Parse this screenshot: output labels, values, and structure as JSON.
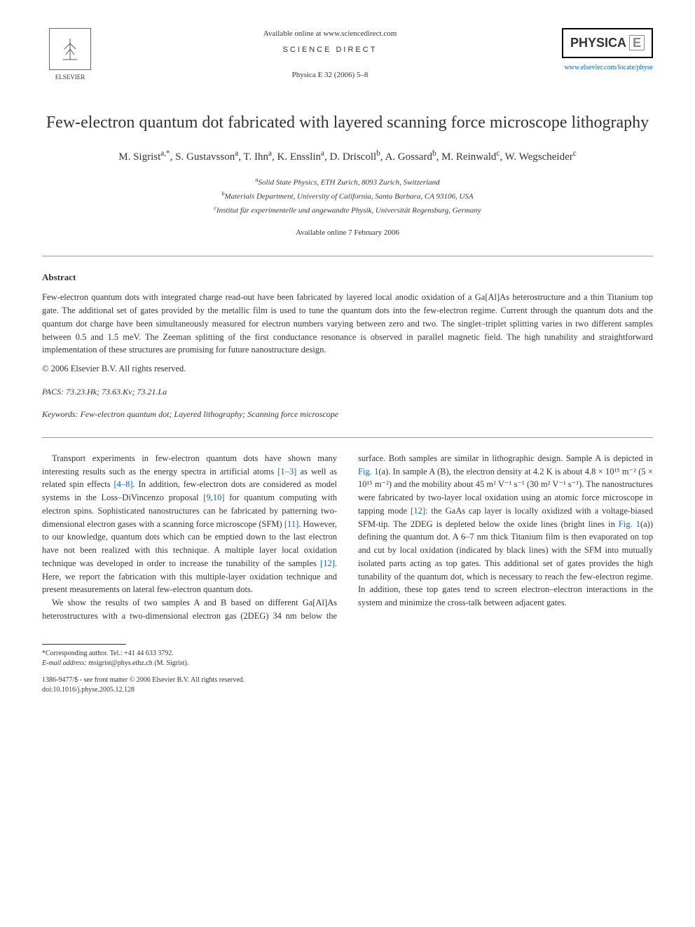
{
  "header": {
    "elsevier_label": "ELSEVIER",
    "available_online": "Available online at www.sciencedirect.com",
    "science_direct": "SCIENCE DIRECT",
    "journal_ref": "Physica E 32 (2006) 5–8",
    "physica_label": "PHYSICA",
    "physica_suffix": "E",
    "journal_url": "www.elsevier.com/locate/physe"
  },
  "title": "Few-electron quantum dot fabricated with layered scanning force microscope lithography",
  "authors_html": "M. Sigrist<sup>a,*</sup>, S. Gustavsson<sup>a</sup>, T. Ihn<sup>a</sup>, K. Ensslin<sup>a</sup>, D. Driscoll<sup>b</sup>, A. Gossard<sup>b</sup>, M. Reinwald<sup>c</sup>, W. Wegscheider<sup>c</sup>",
  "affiliations": {
    "a": "Solid State Physics, ETH Zurich, 8093 Zurich, Switzerland",
    "b": "Materials Department, University of California, Santa Barbara, CA 93106, USA",
    "c": "Institut für experimentelle und angewandte Physik, Universität Regensburg, Germany"
  },
  "date_line": "Available online 7 February 2006",
  "abstract": {
    "heading": "Abstract",
    "text": "Few-electron quantum dots with integrated charge read-out have been fabricated by layered local anodic oxidation of a Ga[Al]As heterostructure and a thin Titanium top gate. The additional set of gates provided by the metallic film is used to tune the quantum dots into the few-electron regime. Current through the quantum dots and the quantum dot charge have been simultaneously measured for electron numbers varying between zero and two. The singlet–triplet splitting varies in two different samples between 0.5 and 1.5 meV. The Zeeman splitting of the first conductance resonance is observed in parallel magnetic field. The high tunability and straightforward implementation of these structures are promising for future nanostructure design.",
    "copyright": "© 2006 Elsevier B.V. All rights reserved."
  },
  "pacs": {
    "label": "PACS:",
    "codes": "73.23.Hk; 73.63.Kv; 73.21.La"
  },
  "keywords": {
    "label": "Keywords:",
    "text": "Few-electron quantum dot; Layered lithography; Scanning force microscope"
  },
  "body": {
    "para1_pre": "Transport experiments in few-electron quantum dots have shown many interesting results such as the energy spectra in artificial atoms ",
    "ref1": "[1–3]",
    "para1_mid1": " as well as related spin effects ",
    "ref2": "[4–8]",
    "para1_mid2": ". In addition, few-electron dots are considered as model systems in the Loss–DiVincenzo proposal ",
    "ref3": "[9,10]",
    "para1_mid3": " for quantum computing with electron spins. Sophisticated nanostructures can be fabricated by patterning two-dimensional electron gases with a scanning force microscope (SFM) ",
    "ref4": "[11]",
    "para1_mid4": ". However, to our knowledge, quantum dots which can be emptied down to the last electron have not been realized with this technique. A multiple layer local oxidation technique was developed in order to increase the tunability of the samples ",
    "ref5": "[12]",
    "para1_end": ". Here, we report the fabrication with this multiple-layer oxidation technique and present measurements on lateral few-electron quantum dots.",
    "para2_pre": "We show the results of two samples A and B based on different Ga[Al]As heterostructures with a two-dimensional electron gas (2DEG) 34 nm below the surface. Both samples are similar in lithographic design. Sample A is depicted in ",
    "fig1a": "Fig. 1",
    "para2_mid1": "(a). In sample A (B), the electron density at 4.2 K is about 4.8 × 10¹⁵ m⁻² (5 × 10¹⁵ m⁻²) and the mobility about 45 m² V⁻¹ s⁻¹ (30 m² V⁻¹ s⁻¹). The nanostructures were fabricated by two-layer local oxidation using an atomic force microscope in tapping mode ",
    "ref6": "[12]",
    "para2_mid2": ": the GaAs cap layer is locally oxidized with a voltage-biased SFM-tip. The 2DEG is depleted below the oxide lines (bright lines in ",
    "fig1b": "Fig. 1",
    "para2_end": "(a)) defining the quantum dot. A 6–7 nm thick Titanium film is then evaporated on top and cut by local oxidation (indicated by black lines) with the SFM into mutually isolated parts acting as top gates. This additional set of gates provides the high tunability of the quantum dot, which is necessary to reach the few-electron regime. In addition, these top gates tend to screen electron–electron interactions in the system and minimize the cross-talk between adjacent gates."
  },
  "footer": {
    "corresponding_label": "*Corresponding author. Tel.: +41 44 633 3792.",
    "email_label": "E-mail address:",
    "email": "msigrist@phys.ethz.ch (M. Sigrist).",
    "issn": "1386-9477/$ - see front matter © 2006 Elsevier B.V. All rights reserved.",
    "doi": "doi:10.1016/j.physe.2005.12.128"
  },
  "colors": {
    "link": "#0066cc",
    "text": "#333333",
    "border": "#999999"
  }
}
